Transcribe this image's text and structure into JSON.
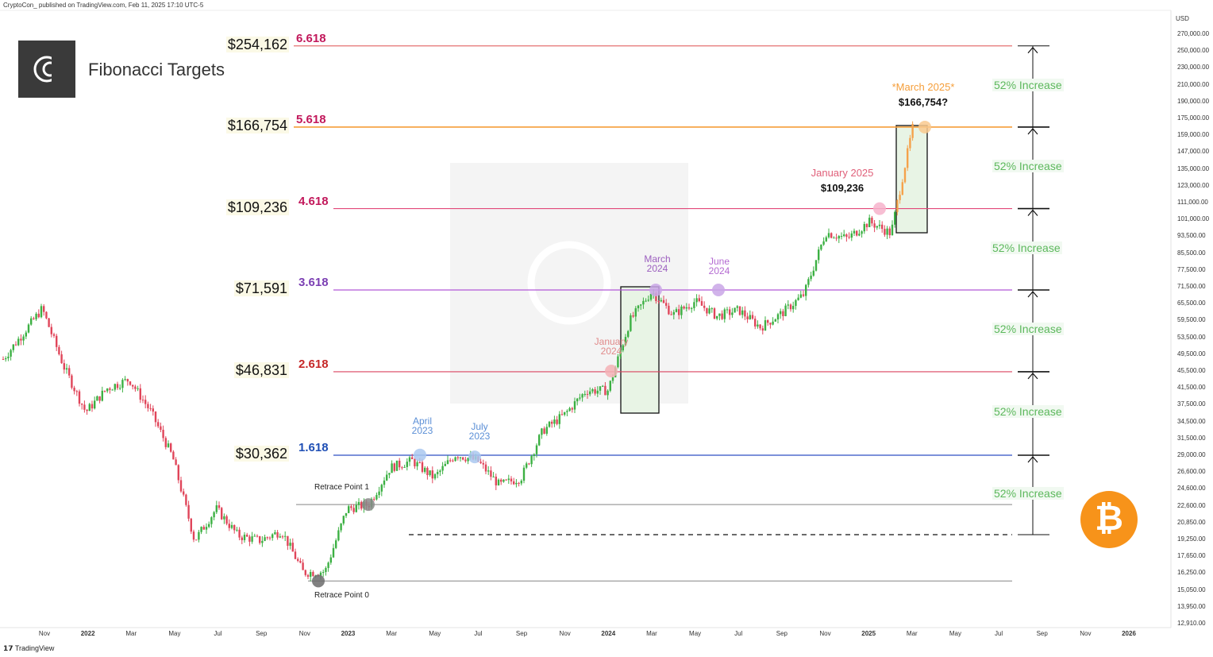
{
  "header": {
    "publisher": "CryptoCon_ published on TradingView.com, Feb 11, 2025 17:10 UTC-5"
  },
  "footer": {
    "brand": "TradingView"
  },
  "title": "Fibonacci Targets",
  "axis": {
    "currency": "USD",
    "y_ticks": [
      "270,000.00",
      "250,000.00",
      "230,000.00",
      "210,000.00",
      "190,000.00",
      "175,000.00",
      "159,000.00",
      "147,000.00",
      "135,000.00",
      "123,000.00",
      "111,000.00",
      "101,000.00",
      "93,500.00",
      "85,500.00",
      "77,500.00",
      "71,500.00",
      "65,500.00",
      "59,500.00",
      "53,500.00",
      "49,500.00",
      "45,500.00",
      "41,500.00",
      "37,500.00",
      "34,500.00",
      "31,500.00",
      "29,000.00",
      "26,600.00",
      "24,600.00",
      "22,600.00",
      "20,850.00",
      "19,250.00",
      "17,650.00",
      "16,250.00",
      "15,050.00",
      "13,950.00",
      "12,910.00"
    ],
    "x_ticks": [
      "Nov",
      "2022",
      "Mar",
      "May",
      "Jul",
      "Sep",
      "Nov",
      "2023",
      "Mar",
      "May",
      "Jul",
      "Sep",
      "Nov",
      "2024",
      "Mar",
      "May",
      "Jul",
      "Sep",
      "Nov",
      "2025",
      "Mar",
      "May",
      "Jul",
      "Sep",
      "Nov",
      "2026"
    ]
  },
  "levels": [
    {
      "fib": "6.618",
      "price": "$254,162",
      "value": 254162,
      "color": "#c2185b",
      "line": "#e57373"
    },
    {
      "fib": "5.618",
      "price": "$166,754",
      "value": 166754,
      "color": "#c2185b",
      "line": "#f59e3a"
    },
    {
      "fib": "4.618",
      "price": "$109,236",
      "value": 109236,
      "color": "#c2185b",
      "line": "#e2487a"
    },
    {
      "fib": "3.618",
      "price": "$71,591",
      "value": 71591,
      "color": "#7b3fb3",
      "line": "#b257d6"
    },
    {
      "fib": "2.618",
      "price": "$46,831",
      "value": 46831,
      "color": "#c62828",
      "line": "#d9455f"
    },
    {
      "fib": "1.618",
      "price": "$30,362",
      "value": 30362,
      "color": "#1f4fb5",
      "line": "#2d4fc4"
    }
  ],
  "retrace": {
    "point1": "Retrace Point 1",
    "point0": "Retrace Point 0",
    "point1_value": 23500,
    "point0_value": 15800,
    "dashed_value": 20100
  },
  "increases": [
    "52% Increase",
    "52% Increase",
    "52% Increase",
    "52% Increase",
    "52% Increase",
    "52% Increase"
  ],
  "annotations": [
    {
      "text1": "April",
      "text2": "2023",
      "color": "#5b8fd6"
    },
    {
      "text1": "July",
      "text2": "2023",
      "color": "#5b8fd6"
    },
    {
      "text1": "January",
      "text2": "2024",
      "color": "#e08a8a"
    },
    {
      "text1": "March",
      "text2": "2024",
      "color": "#9c5fbf"
    },
    {
      "text1": "June",
      "text2": "2024",
      "color": "#b36ad1"
    },
    {
      "text1": "January 2025",
      "text2": "$109,236",
      "color": "#e0607a"
    },
    {
      "text1": "*March 2025*",
      "text2": "$166,754?",
      "color": "#f59e3a"
    }
  ],
  "chart_data": {
    "type": "candlestick",
    "title": "Fibonacci Targets",
    "y_scale": "log",
    "ylim": [
      12910,
      270000
    ],
    "x_range": [
      "2021-11",
      "2026-01"
    ],
    "series": [
      {
        "points": [
          [
            "2021-11",
            65000
          ],
          [
            "2021-12",
            48000
          ],
          [
            "2022-01",
            38000
          ],
          [
            "2022-02",
            43000
          ],
          [
            "2022-03",
            45000
          ],
          [
            "2022-04",
            38000
          ],
          [
            "2022-05",
            30000
          ],
          [
            "2022-06",
            19500
          ],
          [
            "2022-07",
            23000
          ],
          [
            "2022-08",
            20000
          ],
          [
            "2022-09",
            19500
          ],
          [
            "2022-10",
            20500
          ],
          [
            "2022-11",
            16500
          ],
          [
            "2022-12",
            16600
          ],
          [
            "2023-01",
            23000
          ],
          [
            "2023-02",
            23500
          ],
          [
            "2023-03",
            28500
          ],
          [
            "2023-04",
            29500
          ],
          [
            "2023-05",
            27000
          ],
          [
            "2023-06",
            30500
          ],
          [
            "2023-07",
            29500
          ],
          [
            "2023-08",
            26000
          ],
          [
            "2023-09",
            27000
          ],
          [
            "2023-10",
            34500
          ],
          [
            "2023-11",
            37500
          ],
          [
            "2023-12",
            42500
          ],
          [
            "2024-01",
            42500
          ],
          [
            "2024-02",
            61000
          ],
          [
            "2024-03",
            71000
          ],
          [
            "2024-04",
            63000
          ],
          [
            "2024-05",
            67500
          ],
          [
            "2024-06",
            62500
          ],
          [
            "2024-07",
            64500
          ],
          [
            "2024-08",
            59000
          ],
          [
            "2024-09",
            63500
          ],
          [
            "2024-10",
            70000
          ],
          [
            "2024-11",
            96500
          ],
          [
            "2024-12",
            93500
          ],
          [
            "2025-01",
            102000
          ],
          [
            "2025-02",
            96000
          ],
          [
            "2025-03",
            166754
          ]
        ]
      }
    ]
  }
}
